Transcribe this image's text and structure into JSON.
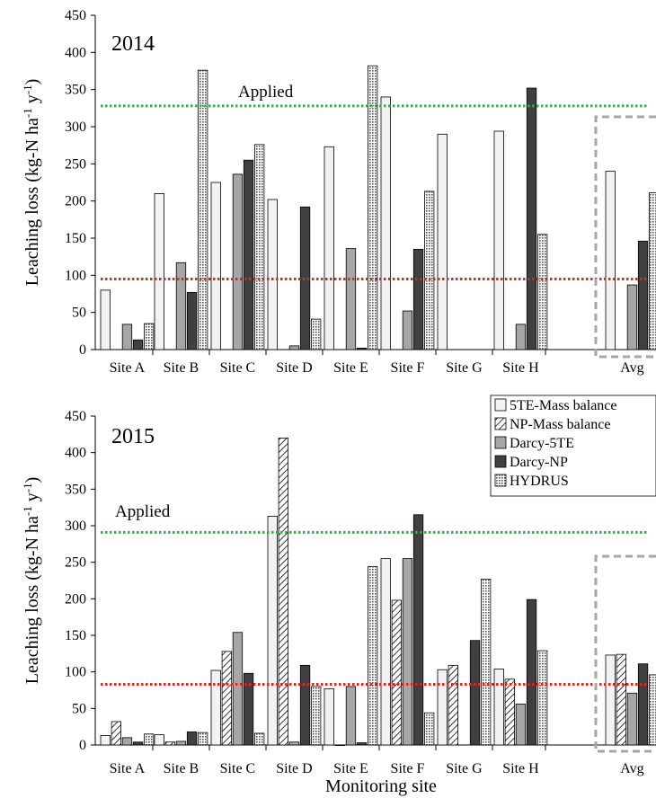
{
  "chart_data": [
    {
      "type": "bar",
      "year_label": "2014",
      "ylabel": "Leaching loss (kg-N ha",
      "ylim": [
        0,
        450
      ],
      "yticks": [
        0,
        50,
        100,
        150,
        200,
        250,
        300,
        350,
        400,
        450
      ],
      "categories": [
        "Site A",
        "Site B",
        "Site C",
        "Site D",
        "Site E",
        "Site F",
        "Site G",
        "Site H",
        "Avg"
      ],
      "applied_label": "Applied",
      "applied_value": 328,
      "red_line_value": 95,
      "series": [
        {
          "name": "5TE-Mass balance",
          "values": [
            80,
            210,
            225,
            202,
            273,
            340,
            290,
            294,
            240
          ]
        },
        {
          "name": "NP-Mass balance",
          "values": [
            null,
            null,
            null,
            null,
            null,
            null,
            null,
            null,
            null
          ]
        },
        {
          "name": "Darcy-5TE",
          "values": [
            34,
            117,
            236,
            5,
            136,
            52,
            null,
            34,
            87
          ]
        },
        {
          "name": "Darcy-NP",
          "values": [
            13,
            77,
            255,
            192,
            2,
            135,
            null,
            352,
            146
          ]
        },
        {
          "name": "HYDRUS",
          "values": [
            35,
            376,
            276,
            41,
            382,
            213,
            null,
            155,
            211
          ]
        }
      ]
    },
    {
      "type": "bar",
      "year_label": "2015",
      "ylabel": "Leaching loss (kg-N ha",
      "xlabel": "Monitoring site",
      "ylim": [
        0,
        450
      ],
      "yticks": [
        0,
        50,
        100,
        150,
        200,
        250,
        300,
        350,
        400,
        450
      ],
      "categories": [
        "Site A",
        "Site B",
        "Site C",
        "Site D",
        "Site E",
        "Site F",
        "Site G",
        "Site H",
        "Avg"
      ],
      "applied_label": "Applied",
      "applied_value": 291,
      "red_line_value": 83,
      "series": [
        {
          "name": "5TE-Mass balance",
          "values": [
            13,
            14,
            102,
            313,
            77,
            255,
            103,
            104,
            123
          ]
        },
        {
          "name": "NP-Mass balance",
          "values": [
            32,
            4,
            128,
            420,
            0,
            198,
            109,
            90,
            124
          ]
        },
        {
          "name": "Darcy-5TE",
          "values": [
            10,
            5,
            154,
            4,
            80,
            255,
            null,
            56,
            71
          ]
        },
        {
          "name": "Darcy-NP",
          "values": [
            4,
            18,
            98,
            109,
            3,
            315,
            143,
            199,
            111
          ]
        },
        {
          "name": "HYDRUS",
          "values": [
            15,
            17,
            16,
            80,
            244,
            44,
            227,
            129,
            96
          ]
        }
      ]
    }
  ],
  "legend": [
    "5TE-Mass balance",
    "NP-Mass balance",
    "Darcy-5TE",
    "Darcy-NP",
    "HYDRUS"
  ],
  "colors": {
    "applied_line": "#2db34a",
    "red_line": "#e8211d",
    "avg_box": "#a6a6a6",
    "series": [
      "#f2f2f2",
      "#ffffff",
      "#a6a6a6",
      "#404040",
      "#d9d9d9"
    ]
  }
}
